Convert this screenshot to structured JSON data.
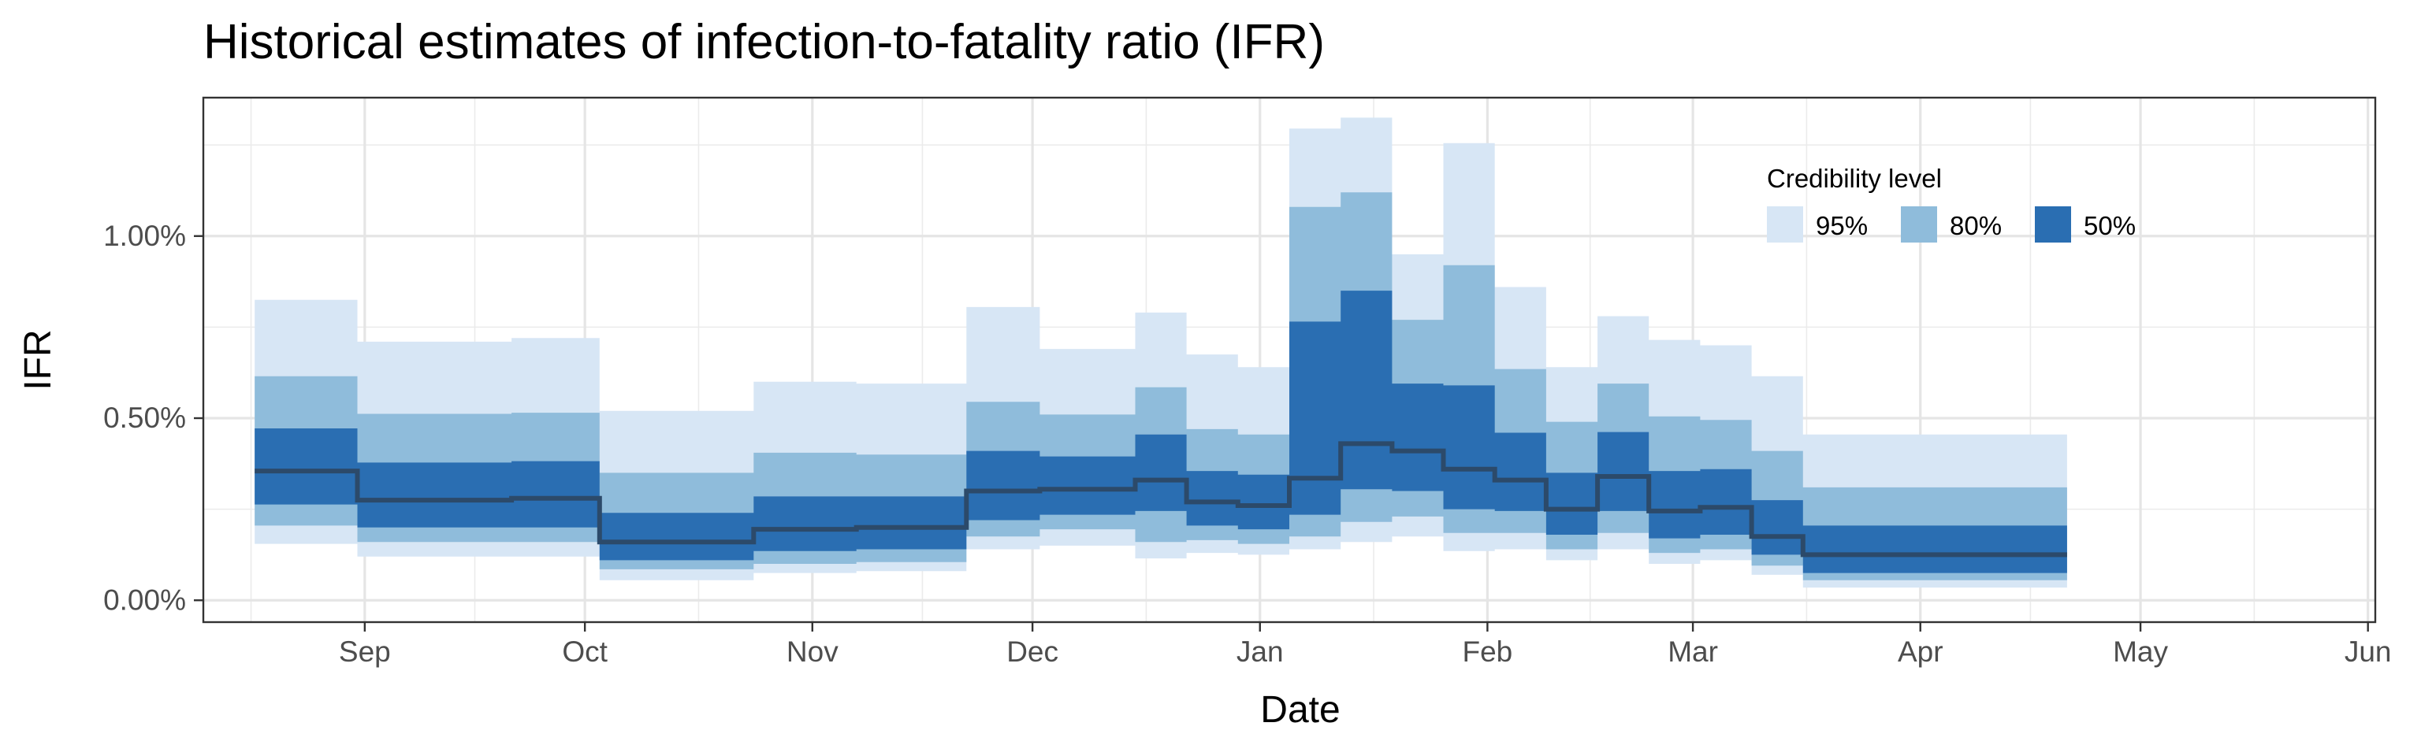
{
  "chart_data": {
    "type": "area",
    "title": "Historical estimates of infection-to-fatality ratio (IFR)",
    "xlabel": "Date",
    "ylabel": "IFR",
    "xlim": [
      "2020-08-10",
      "2021-06-02"
    ],
    "ylim": [
      -0.0006,
      0.0138
    ],
    "x_ticks": [
      {
        "date": "2020-09-01",
        "label": "Sep"
      },
      {
        "date": "2020-10-01",
        "label": "Oct"
      },
      {
        "date": "2020-11-01",
        "label": "Nov"
      },
      {
        "date": "2020-12-01",
        "label": "Dec"
      },
      {
        "date": "2021-01-01",
        "label": "Jan"
      },
      {
        "date": "2021-02-01",
        "label": "Feb"
      },
      {
        "date": "2021-03-01",
        "label": "Mar"
      },
      {
        "date": "2021-04-01",
        "label": "Apr"
      },
      {
        "date": "2021-05-01",
        "label": "May"
      },
      {
        "date": "2021-06-01",
        "label": "Jun"
      }
    ],
    "y_ticks": [
      {
        "value": 0.0,
        "label": "0.00%"
      },
      {
        "value": 0.005,
        "label": "0.50%"
      },
      {
        "value": 0.01,
        "label": "1.00%"
      }
    ],
    "grid": true,
    "legend": {
      "title": "Credibility level",
      "position": "top-right",
      "entries": [
        {
          "label": "95%",
          "color": "#d7e6f5"
        },
        {
          "label": "80%",
          "color": "#8fbcdb"
        },
        {
          "label": "50%",
          "color": "#2a6eb2"
        }
      ]
    },
    "median_color": "#2c4a6a",
    "segments": [
      {
        "start": "2020-08-17",
        "end": "2020-08-30",
        "median": 0.00355,
        "lo50": 0.00263,
        "hi50": 0.00472,
        "lo80": 0.00205,
        "hi80": 0.00615,
        "lo95": 0.00155,
        "hi95": 0.00825
      },
      {
        "start": "2020-08-31",
        "end": "2020-09-20",
        "median": 0.00275,
        "lo50": 0.002,
        "hi50": 0.00378,
        "lo80": 0.0016,
        "hi80": 0.00512,
        "lo95": 0.0012,
        "hi95": 0.0071
      },
      {
        "start": "2020-09-21",
        "end": "2020-10-02",
        "median": 0.0028,
        "lo50": 0.002,
        "hi50": 0.00382,
        "lo80": 0.0016,
        "hi80": 0.00515,
        "lo95": 0.0012,
        "hi95": 0.0072
      },
      {
        "start": "2020-10-03",
        "end": "2020-10-23",
        "median": 0.0016,
        "lo50": 0.0011,
        "hi50": 0.0024,
        "lo80": 0.00085,
        "hi80": 0.0035,
        "lo95": 0.00055,
        "hi95": 0.0052
      },
      {
        "start": "2020-10-24",
        "end": "2020-11-06",
        "median": 0.00195,
        "lo50": 0.00135,
        "hi50": 0.00285,
        "lo80": 0.001,
        "hi80": 0.00405,
        "lo95": 0.00075,
        "hi95": 0.006
      },
      {
        "start": "2020-11-07",
        "end": "2020-11-21",
        "median": 0.002,
        "lo50": 0.0014,
        "hi50": 0.00285,
        "lo80": 0.00105,
        "hi80": 0.004,
        "lo95": 0.0008,
        "hi95": 0.00595
      },
      {
        "start": "2020-11-22",
        "end": "2020-12-01",
        "median": 0.003,
        "lo50": 0.0022,
        "hi50": 0.0041,
        "lo80": 0.00175,
        "hi80": 0.00545,
        "lo95": 0.0014,
        "hi95": 0.00805
      },
      {
        "start": "2020-12-02",
        "end": "2020-12-14",
        "median": 0.00305,
        "lo50": 0.00235,
        "hi50": 0.00395,
        "lo80": 0.00195,
        "hi80": 0.0051,
        "lo95": 0.0015,
        "hi95": 0.0069
      },
      {
        "start": "2020-12-15",
        "end": "2020-12-21",
        "median": 0.0033,
        "lo50": 0.00245,
        "hi50": 0.00455,
        "lo80": 0.0016,
        "hi80": 0.00585,
        "lo95": 0.00115,
        "hi95": 0.0079
      },
      {
        "start": "2020-12-22",
        "end": "2020-12-28",
        "median": 0.0027,
        "lo50": 0.00205,
        "hi50": 0.00355,
        "lo80": 0.00165,
        "hi80": 0.0047,
        "lo95": 0.0013,
        "hi95": 0.00675
      },
      {
        "start": "2020-12-29",
        "end": "2021-01-04",
        "median": 0.0026,
        "lo50": 0.00195,
        "hi50": 0.00345,
        "lo80": 0.00155,
        "hi80": 0.00455,
        "lo95": 0.00125,
        "hi95": 0.0064
      },
      {
        "start": "2021-01-05",
        "end": "2021-01-11",
        "median": 0.00335,
        "lo50": 0.00235,
        "hi50": 0.00765,
        "lo80": 0.00175,
        "hi80": 0.0108,
        "lo95": 0.0014,
        "hi95": 0.01295
      },
      {
        "start": "2021-01-12",
        "end": "2021-01-18",
        "median": 0.0043,
        "lo50": 0.00305,
        "hi50": 0.0085,
        "lo80": 0.00215,
        "hi80": 0.0112,
        "lo95": 0.0016,
        "hi95": 0.01325
      },
      {
        "start": "2021-01-19",
        "end": "2021-01-25",
        "median": 0.0041,
        "lo50": 0.003,
        "hi50": 0.00595,
        "lo80": 0.0023,
        "hi80": 0.0077,
        "lo95": 0.00175,
        "hi95": 0.0095
      },
      {
        "start": "2021-01-26",
        "end": "2021-02-01",
        "median": 0.0036,
        "lo50": 0.0025,
        "hi50": 0.0059,
        "lo80": 0.00185,
        "hi80": 0.0092,
        "lo95": 0.00135,
        "hi95": 0.01255
      },
      {
        "start": "2021-02-02",
        "end": "2021-02-08",
        "median": 0.0033,
        "lo50": 0.00245,
        "hi50": 0.0046,
        "lo80": 0.00185,
        "hi80": 0.00635,
        "lo95": 0.0014,
        "hi95": 0.0086
      },
      {
        "start": "2021-02-09",
        "end": "2021-02-15",
        "median": 0.0025,
        "lo50": 0.0018,
        "hi50": 0.0035,
        "lo80": 0.0014,
        "hi80": 0.0049,
        "lo95": 0.0011,
        "hi95": 0.0064
      },
      {
        "start": "2021-02-16",
        "end": "2021-02-22",
        "median": 0.0034,
        "lo50": 0.00245,
        "hi50": 0.00462,
        "lo80": 0.00185,
        "hi80": 0.00595,
        "lo95": 0.0014,
        "hi95": 0.0078
      },
      {
        "start": "2021-02-23",
        "end": "2021-03-01",
        "median": 0.00245,
        "lo50": 0.0017,
        "hi50": 0.00355,
        "lo80": 0.0013,
        "hi80": 0.00505,
        "lo95": 0.001,
        "hi95": 0.00715
      },
      {
        "start": "2021-03-02",
        "end": "2021-03-08",
        "median": 0.00255,
        "lo50": 0.0018,
        "hi50": 0.0036,
        "lo80": 0.0014,
        "hi80": 0.00495,
        "lo95": 0.0011,
        "hi95": 0.007
      },
      {
        "start": "2021-03-09",
        "end": "2021-03-15",
        "median": 0.00175,
        "lo50": 0.00125,
        "hi50": 0.00275,
        "lo80": 0.00095,
        "hi80": 0.0041,
        "lo95": 0.0007,
        "hi95": 0.00615
      },
      {
        "start": "2021-03-16",
        "end": "2021-04-20",
        "median": 0.00125,
        "lo50": 0.00075,
        "hi50": 0.00205,
        "lo80": 0.00055,
        "hi80": 0.0031,
        "lo95": 0.00035,
        "hi95": 0.00455
      }
    ]
  }
}
